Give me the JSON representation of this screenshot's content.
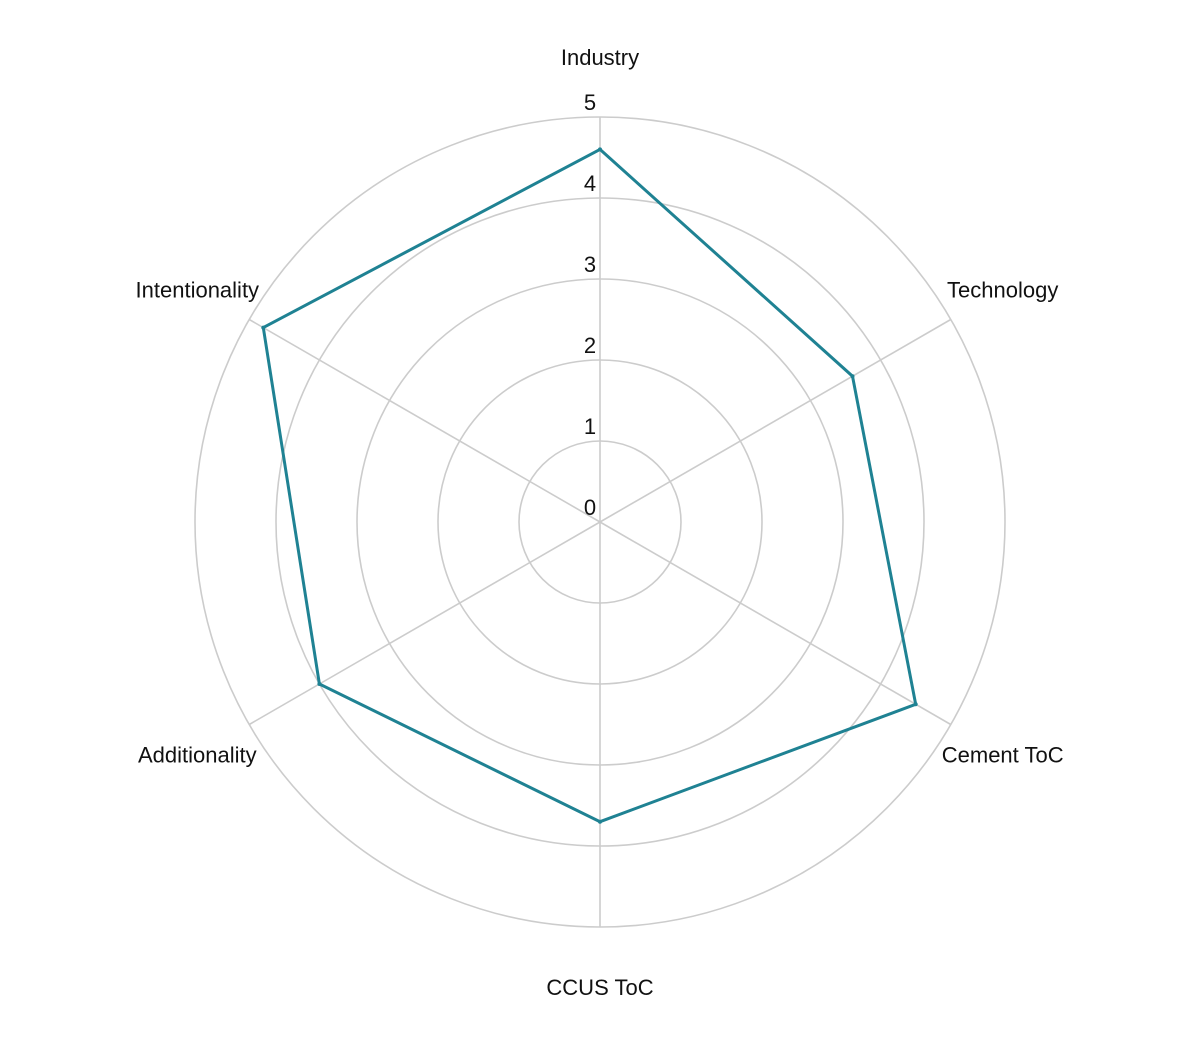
{
  "chart_data": {
    "type": "radar",
    "title": "",
    "categories": [
      "Industry",
      "Technology",
      "Cement ToC",
      "CCUS ToC",
      "Additionality",
      "Intentionality"
    ],
    "series": [
      {
        "values": [
          4.6,
          3.6,
          4.5,
          3.7,
          4.0,
          4.8
        ],
        "color": "#1f8293"
      }
    ],
    "rlim": [
      0,
      5
    ],
    "r_ticks": [
      "0",
      "1",
      "2",
      "3",
      "4",
      "5"
    ],
    "grid": true,
    "grid_color": "#cccccc",
    "legend": "none"
  }
}
